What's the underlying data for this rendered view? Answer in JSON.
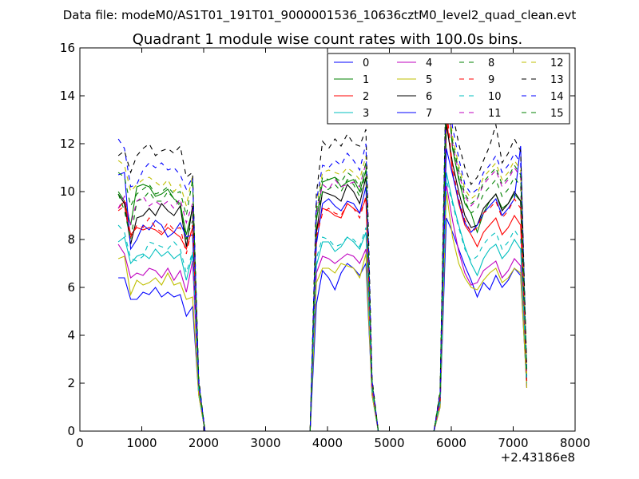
{
  "figure": {
    "suptitle": "Data file: modeM0/AS1T01_191T01_9000001536_10636cztM0_level2_quad_clean.evt"
  },
  "chart_data": {
    "type": "line",
    "title": "Quadrant 1 module wise count rates with 100.0s bins.",
    "xlabel": "",
    "ylabel": "",
    "x_offset_label": "+2.43186e8",
    "xlim": [
      0,
      8000
    ],
    "ylim": [
      0,
      16
    ],
    "x_ticks": [
      0,
      1000,
      2000,
      3000,
      4000,
      5000,
      6000,
      7000,
      8000
    ],
    "y_ticks": [
      0,
      2,
      4,
      6,
      8,
      10,
      12,
      14,
      16
    ],
    "grid": false,
    "legend": {
      "placement": "top-right",
      "columns": 4
    },
    "x": [
      620,
      720,
      820,
      920,
      1020,
      1120,
      1220,
      1320,
      1420,
      1520,
      1620,
      1720,
      1820,
      1920,
      2020,
      2120,
      2220,
      2320,
      2420,
      2520,
      2620,
      2720,
      2820,
      2920,
      3020,
      3120,
      3220,
      3320,
      3420,
      3520,
      3620,
      3720,
      3820,
      3920,
      4020,
      4120,
      4220,
      4320,
      4420,
      4520,
      4620,
      4720,
      4820,
      4920,
      5020,
      5120,
      5220,
      5320,
      5420,
      5520,
      5620,
      5720,
      5820,
      5920,
      6020,
      6120,
      6220,
      6320,
      6420,
      6520,
      6620,
      6720,
      6820,
      6920,
      7020,
      7120,
      7220
    ],
    "series": [
      {
        "name": "0",
        "color": "#0000ff",
        "dash": "solid",
        "values": [
          6.4,
          6.4,
          5.5,
          5.5,
          5.8,
          5.7,
          6.0,
          5.6,
          5.8,
          5.6,
          5.7,
          4.8,
          5.2,
          1.5,
          0,
          0,
          0,
          0,
          0,
          0,
          0,
          0,
          0,
          0,
          0,
          0,
          0,
          0,
          0,
          0,
          0,
          0,
          5.3,
          6.7,
          6.4,
          5.9,
          6.6,
          7.0,
          6.8,
          6.5,
          7.0,
          1.5,
          0,
          0,
          0,
          0,
          0,
          0,
          0,
          0,
          0,
          0,
          1.0,
          8.9,
          8.3,
          7.6,
          6.9,
          6.3,
          5.6,
          6.2,
          5.9,
          6.5,
          6.0,
          6.3,
          6.8,
          6.5,
          1.8
        ]
      },
      {
        "name": "1",
        "color": "#008000",
        "dash": "solid",
        "values": [
          10.0,
          9.6,
          8.6,
          10.2,
          10.3,
          10.2,
          9.8,
          9.9,
          10.1,
          9.7,
          9.5,
          8.2,
          9.3,
          2.0,
          0,
          0,
          0,
          0,
          0,
          0,
          0,
          0,
          0,
          0,
          0,
          0,
          0,
          0,
          0,
          0,
          0,
          0,
          8.8,
          10.4,
          10.5,
          10.6,
          10.2,
          10.4,
          10.5,
          10.0,
          10.9,
          2.0,
          0,
          0,
          0,
          0,
          0,
          0,
          0,
          0,
          0,
          0,
          1.5,
          14.7,
          11.8,
          10.5,
          9.5,
          9.1,
          8.3,
          9.1,
          9.6,
          9.9,
          9.3,
          9.5,
          9.9,
          9.6,
          2.3
        ]
      },
      {
        "name": "2",
        "color": "#ff0000",
        "dash": "solid",
        "values": [
          9.3,
          9.6,
          8.2,
          8.5,
          8.4,
          8.5,
          8.4,
          8.2,
          8.5,
          8.3,
          8.1,
          7.6,
          8.5,
          1.9,
          0,
          0,
          0,
          0,
          0,
          0,
          0,
          0,
          0,
          0,
          0,
          0,
          0,
          0,
          0,
          0,
          0,
          0,
          8.3,
          9.3,
          9.2,
          9.0,
          8.9,
          9.5,
          9.3,
          9.1,
          9.7,
          1.9,
          0,
          0,
          0,
          0,
          0,
          0,
          0,
          0,
          0,
          0,
          1.3,
          13.2,
          10.8,
          9.5,
          8.6,
          8.2,
          7.7,
          8.3,
          8.6,
          8.9,
          8.2,
          8.5,
          9.0,
          8.6,
          2.1
        ]
      },
      {
        "name": "3",
        "color": "#00bfbf",
        "dash": "solid",
        "values": [
          7.9,
          8.1,
          7.0,
          7.3,
          7.4,
          7.2,
          7.6,
          7.3,
          7.5,
          7.2,
          7.4,
          6.3,
          7.4,
          1.7,
          0,
          0,
          0,
          0,
          0,
          0,
          0,
          0,
          0,
          0,
          0,
          0,
          0,
          0,
          0,
          0,
          0,
          0,
          6.9,
          7.9,
          7.9,
          7.5,
          7.7,
          8.1,
          7.9,
          7.6,
          8.3,
          1.7,
          0,
          0,
          0,
          0,
          0,
          0,
          0,
          0,
          0,
          0,
          1.2,
          10.8,
          9.6,
          8.6,
          7.7,
          7.0,
          6.5,
          7.2,
          7.6,
          7.8,
          7.2,
          7.5,
          8.0,
          7.6,
          1.9
        ]
      },
      {
        "name": "4",
        "color": "#bf00bf",
        "dash": "solid",
        "values": [
          7.8,
          7.4,
          6.4,
          6.6,
          6.5,
          6.8,
          6.7,
          6.4,
          6.8,
          6.3,
          6.7,
          5.8,
          7.1,
          1.6,
          0,
          0,
          0,
          0,
          0,
          0,
          0,
          0,
          0,
          0,
          0,
          0,
          0,
          0,
          0,
          0,
          0,
          0,
          6.6,
          7.3,
          7.2,
          7.0,
          7.2,
          7.4,
          7.3,
          7.0,
          7.6,
          1.6,
          0,
          0,
          0,
          0,
          0,
          0,
          0,
          0,
          0,
          0,
          1.1,
          10.3,
          8.8,
          7.5,
          6.6,
          6.1,
          6.2,
          6.7,
          6.9,
          7.1,
          6.4,
          6.7,
          7.2,
          6.9,
          1.8
        ]
      },
      {
        "name": "5",
        "color": "#bfbf00",
        "dash": "solid",
        "values": [
          7.2,
          7.3,
          5.7,
          6.3,
          6.1,
          6.2,
          6.4,
          6.1,
          6.6,
          6.1,
          6.2,
          5.5,
          5.6,
          1.5,
          0,
          0,
          0,
          0,
          0,
          0,
          0,
          0,
          0,
          0,
          0,
          0,
          0,
          0,
          0,
          0,
          0,
          0,
          6.2,
          6.8,
          6.8,
          6.6,
          7.0,
          6.9,
          6.8,
          6.4,
          7.4,
          1.5,
          0,
          0,
          0,
          0,
          0,
          0,
          0,
          0,
          0,
          0,
          1.0,
          10.0,
          8.1,
          7.0,
          6.4,
          6.0,
          5.9,
          6.3,
          6.6,
          6.8,
          6.2,
          6.4,
          6.8,
          6.6,
          1.8
        ]
      },
      {
        "name": "6",
        "color": "#000000",
        "dash": "solid",
        "values": [
          9.9,
          9.5,
          7.8,
          8.9,
          9.0,
          9.3,
          9.0,
          9.5,
          9.2,
          9.0,
          9.4,
          7.7,
          9.4,
          1.9,
          0,
          0,
          0,
          0,
          0,
          0,
          0,
          0,
          0,
          0,
          0,
          0,
          0,
          0,
          0,
          0,
          0,
          0,
          8.3,
          10.0,
          9.9,
          9.8,
          9.6,
          10.3,
          10.0,
          9.5,
          10.6,
          1.9,
          0,
          0,
          0,
          0,
          0,
          0,
          0,
          0,
          0,
          0,
          1.4,
          12.8,
          11.2,
          10.0,
          9.0,
          8.5,
          8.6,
          9.3,
          9.6,
          9.9,
          9.2,
          9.5,
          10.0,
          9.6,
          2.2
        ]
      },
      {
        "name": "7",
        "color": "#0000ff",
        "dash": "solid",
        "values": [
          10.7,
          10.8,
          7.6,
          8.0,
          8.6,
          8.4,
          8.8,
          8.6,
          8.1,
          8.3,
          8.7,
          8.1,
          8.2,
          1.9,
          0,
          0,
          0,
          0,
          0,
          0,
          0,
          0,
          0,
          0,
          0,
          0,
          0,
          0,
          0,
          0,
          0,
          0,
          7.8,
          9.5,
          9.7,
          9.4,
          9.2,
          9.6,
          9.5,
          9.1,
          10.2,
          1.9,
          0,
          0,
          0,
          0,
          0,
          0,
          0,
          0,
          0,
          0,
          1.3,
          11.8,
          10.7,
          9.6,
          8.7,
          8.3,
          8.6,
          9.1,
          9.4,
          9.7,
          9.0,
          9.3,
          9.7,
          11.9,
          2.1
        ]
      },
      {
        "name": "8",
        "color": "#008000",
        "dash": "dashed",
        "values": [
          9.9,
          9.2,
          8.0,
          9.6,
          9.7,
          10.0,
          9.6,
          9.6,
          10.0,
          9.7,
          9.4,
          8.0,
          8.8,
          2.0,
          0,
          0,
          0,
          0,
          0,
          0,
          0,
          0,
          0,
          0,
          0,
          0,
          0,
          0,
          0,
          0,
          0,
          0,
          8.9,
          10.0,
          10.1,
          10.3,
          10.0,
          10.5,
          10.3,
          9.8,
          10.8,
          2.0,
          0,
          0,
          0,
          0,
          0,
          0,
          0,
          0,
          0,
          0,
          1.5,
          15.3,
          11.9,
          10.6,
          9.6,
          9.1,
          9.3,
          9.9,
          10.2,
          10.5,
          9.8,
          10.1,
          10.6,
          10.2,
          2.3
        ]
      },
      {
        "name": "9",
        "color": "#ff0000",
        "dash": "dashed",
        "values": [
          9.2,
          9.4,
          8.1,
          8.6,
          8.5,
          8.9,
          8.5,
          8.3,
          8.7,
          8.4,
          8.5,
          7.4,
          8.6,
          1.9,
          0,
          0,
          0,
          0,
          0,
          0,
          0,
          0,
          0,
          0,
          0,
          0,
          0,
          0,
          0,
          0,
          0,
          0,
          8.1,
          9.1,
          9.3,
          9.1,
          9.0,
          9.5,
          9.3,
          8.9,
          9.8,
          1.9,
          0,
          0,
          0,
          0,
          0,
          0,
          0,
          0,
          0,
          0,
          1.3,
          13.6,
          11.0,
          9.7,
          8.8,
          8.3,
          8.5,
          9.1,
          9.3,
          9.6,
          8.9,
          9.2,
          9.7,
          9.3,
          2.1
        ]
      },
      {
        "name": "10",
        "color": "#00bfbf",
        "dash": "dashed",
        "values": [
          8.6,
          8.3,
          7.2,
          7.1,
          7.3,
          7.9,
          7.8,
          7.7,
          7.6,
          7.9,
          7.6,
          6.6,
          7.5,
          1.7,
          0,
          0,
          0,
          0,
          0,
          0,
          0,
          0,
          0,
          0,
          0,
          0,
          0,
          0,
          0,
          0,
          0,
          0,
          7.2,
          8.1,
          8.0,
          7.7,
          7.8,
          8.1,
          8.0,
          7.7,
          8.5,
          1.7,
          0,
          0,
          0,
          0,
          0,
          0,
          0,
          0,
          0,
          0,
          1.2,
          10.5,
          9.5,
          8.5,
          7.6,
          7.1,
          7.3,
          7.8,
          8.1,
          8.3,
          7.6,
          7.9,
          8.4,
          8.0,
          2.0
        ]
      },
      {
        "name": "11",
        "color": "#bf00bf",
        "dash": "dashed",
        "values": [
          9.3,
          9.8,
          8.6,
          9.6,
          9.8,
          9.4,
          9.6,
          9.4,
          9.6,
          9.3,
          9.7,
          8.7,
          9.5,
          1.9,
          0,
          0,
          0,
          0,
          0,
          0,
          0,
          0,
          0,
          0,
          0,
          0,
          0,
          0,
          0,
          0,
          0,
          0,
          9.1,
          10.3,
          10.1,
          10.5,
          10.2,
          10.3,
          10.4,
          10.2,
          11.2,
          1.9,
          0,
          0,
          0,
          0,
          0,
          0,
          0,
          0,
          0,
          0,
          1.5,
          14.3,
          12.0,
          10.8,
          9.8,
          9.4,
          9.7,
          10.3,
          10.6,
          10.9,
          10.2,
          10.5,
          11.0,
          10.6,
          2.3
        ]
      },
      {
        "name": "12",
        "color": "#bfbf00",
        "dash": "dashed",
        "values": [
          11.3,
          11.1,
          10.0,
          10.3,
          10.5,
          10.6,
          10.4,
          10.2,
          10.5,
          10.0,
          10.3,
          9.4,
          10.7,
          2.1,
          0,
          0,
          0,
          0,
          0,
          0,
          0,
          0,
          0,
          0,
          0,
          0,
          0,
          0,
          0,
          0,
          0,
          0,
          9.4,
          10.8,
          10.9,
          10.8,
          10.7,
          11.0,
          10.8,
          10.5,
          11.5,
          2.1,
          0,
          0,
          0,
          0,
          0,
          0,
          0,
          0,
          0,
          0,
          1.6,
          14.6,
          12.3,
          11.1,
          10.1,
          9.7,
          9.9,
          10.6,
          10.9,
          11.2,
          10.5,
          10.8,
          11.3,
          10.9,
          2.4
        ]
      },
      {
        "name": "13",
        "color": "#000000",
        "dash": "dashed",
        "values": [
          11.5,
          11.7,
          10.8,
          11.5,
          11.8,
          12.0,
          11.5,
          11.7,
          11.8,
          11.6,
          11.9,
          10.6,
          10.8,
          2.2,
          0,
          0,
          0,
          0,
          0,
          0,
          0,
          0,
          0,
          0,
          0,
          0,
          0,
          0,
          0,
          0,
          0,
          0,
          9.9,
          12.1,
          11.8,
          12.2,
          11.9,
          12.4,
          12.0,
          11.9,
          12.6,
          2.2,
          0,
          0,
          0,
          0,
          0,
          0,
          0,
          0,
          0,
          0,
          1.7,
          15.4,
          13.3,
          12.0,
          11.0,
          10.3,
          10.6,
          11.3,
          11.9,
          12.8,
          11.2,
          11.6,
          12.2,
          11.7,
          2.6
        ]
      },
      {
        "name": "14",
        "color": "#0000ff",
        "dash": "dashed",
        "values": [
          12.2,
          11.8,
          10.2,
          10.3,
          10.9,
          11.2,
          11.0,
          11.2,
          10.9,
          11.0,
          10.7,
          10.1,
          10.6,
          2.1,
          0,
          0,
          0,
          0,
          0,
          0,
          0,
          0,
          0,
          0,
          0,
          0,
          0,
          0,
          0,
          0,
          0,
          0,
          9.6,
          11.1,
          11.0,
          11.3,
          11.1,
          11.6,
          11.3,
          10.9,
          12.0,
          2.1,
          0,
          0,
          0,
          0,
          0,
          0,
          0,
          0,
          0,
          0,
          1.6,
          14.8,
          12.7,
          11.4,
          10.3,
          9.9,
          10.1,
          10.8,
          11.1,
          11.5,
          10.8,
          11.1,
          11.6,
          11.2,
          2.5
        ]
      },
      {
        "name": "15",
        "color": "#008000",
        "dash": "dashed",
        "values": [
          10.8,
          10.6,
          9.4,
          9.9,
          10.1,
          10.3,
          9.9,
          10.0,
          10.2,
          9.9,
          10.0,
          9.0,
          10.5,
          2.0,
          0,
          0,
          0,
          0,
          0,
          0,
          0,
          0,
          0,
          0,
          0,
          0,
          0,
          0,
          0,
          0,
          0,
          0,
          9.2,
          10.6,
          10.5,
          10.6,
          10.4,
          10.8,
          10.6,
          10.2,
          11.2,
          2.0,
          0,
          0,
          0,
          0,
          0,
          0,
          0,
          0,
          0,
          0,
          1.6,
          14.2,
          12.1,
          10.9,
          9.9,
          9.5,
          9.7,
          10.4,
          10.7,
          11.0,
          10.3,
          10.6,
          11.1,
          10.7,
          2.4
        ]
      }
    ]
  }
}
